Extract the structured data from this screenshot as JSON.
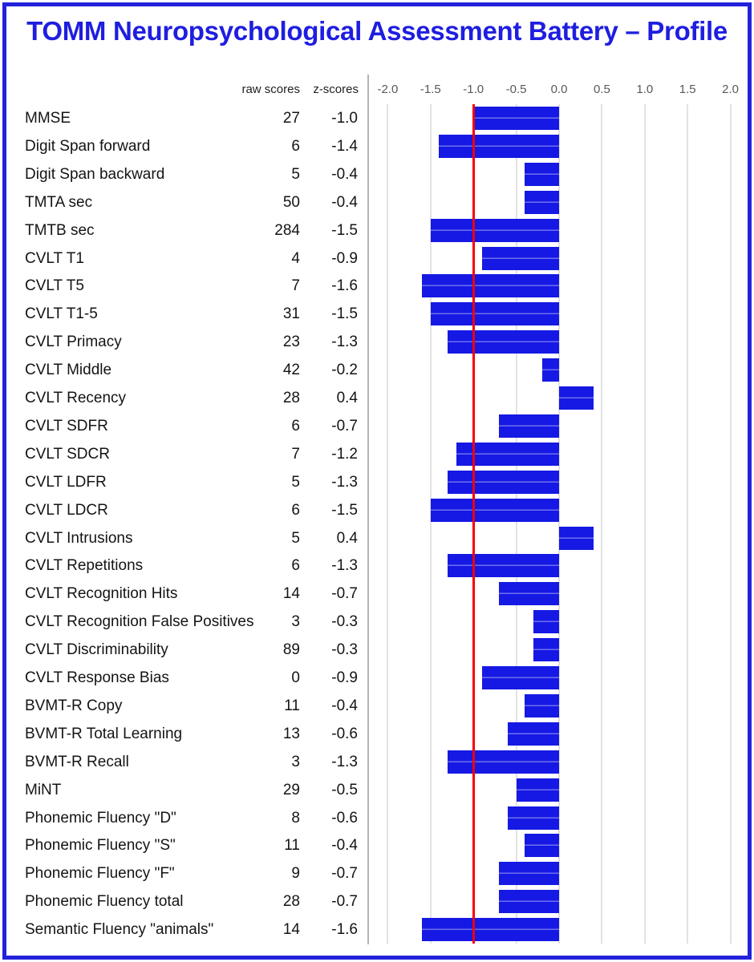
{
  "title": "TOMM Neuropsychological Assessment Battery – Profile",
  "table": {
    "raw_header": "raw scores",
    "z_header": "z-scores"
  },
  "colors": {
    "bar_blue": "#1519e3",
    "title_blue": "#1e1ee0",
    "border_blue": "#2222dc",
    "reference_red": "#f60000",
    "gridline_gray": "#e2e2e2",
    "axis_separator_gray": "#b3b3b3",
    "tick_text_gray": "#595959"
  },
  "chart_data": {
    "type": "bar",
    "orientation": "horizontal",
    "title": "TOMM Neuropsychological Assessment Battery – Profile",
    "xlabel": "z-scores",
    "xlim": [
      -2.0,
      2.0
    ],
    "xticks": [
      -2.0,
      -1.5,
      -1.0,
      -0.5,
      0.0,
      0.5,
      1.0,
      1.5,
      2.0
    ],
    "grid": true,
    "reference_line_x": -1.0,
    "categories": [
      "MMSE",
      "Digit Span forward",
      "Digit Span backward",
      "TMTA sec",
      "TMTB sec",
      "CVLT T1",
      "CVLT T5",
      "CVLT T1-5",
      "CVLT Primacy",
      "CVLT Middle",
      "CVLT Recency",
      "CVLT SDFR",
      "CVLT SDCR",
      "CVLT LDFR",
      "CVLT LDCR",
      "CVLT Intrusions",
      "CVLT Repetitions",
      "CVLT Recognition Hits",
      "CVLT Recognition False Positives",
      "CVLT Discriminability",
      "CVLT Response Bias",
      "BVMT-R Copy",
      "BVMT-R Total Learning",
      "BVMT-R Recall",
      "MiNT",
      "Phonemic Fluency \"D\"",
      "Phonemic Fluency \"S\"",
      "Phonemic Fluency \"F\"",
      "Phonemic Fluency total",
      "Semantic Fluency \"animals\""
    ],
    "raw_scores": [
      27,
      6,
      5,
      50,
      284,
      4,
      7,
      31,
      23,
      42,
      28,
      6,
      7,
      5,
      6,
      5,
      6,
      14,
      3,
      89,
      0,
      11,
      13,
      3,
      29,
      8,
      11,
      9,
      28,
      14
    ],
    "z_scores": [
      -1.0,
      -1.4,
      -0.4,
      -0.4,
      -1.5,
      -0.9,
      -1.6,
      -1.5,
      -1.3,
      -0.2,
      0.4,
      -0.7,
      -1.2,
      -1.3,
      -1.5,
      0.4,
      -1.3,
      -0.7,
      -0.3,
      -0.3,
      -0.9,
      -0.4,
      -0.6,
      -1.3,
      -0.5,
      -0.6,
      -0.4,
      -0.7,
      -0.7,
      -1.6
    ]
  }
}
